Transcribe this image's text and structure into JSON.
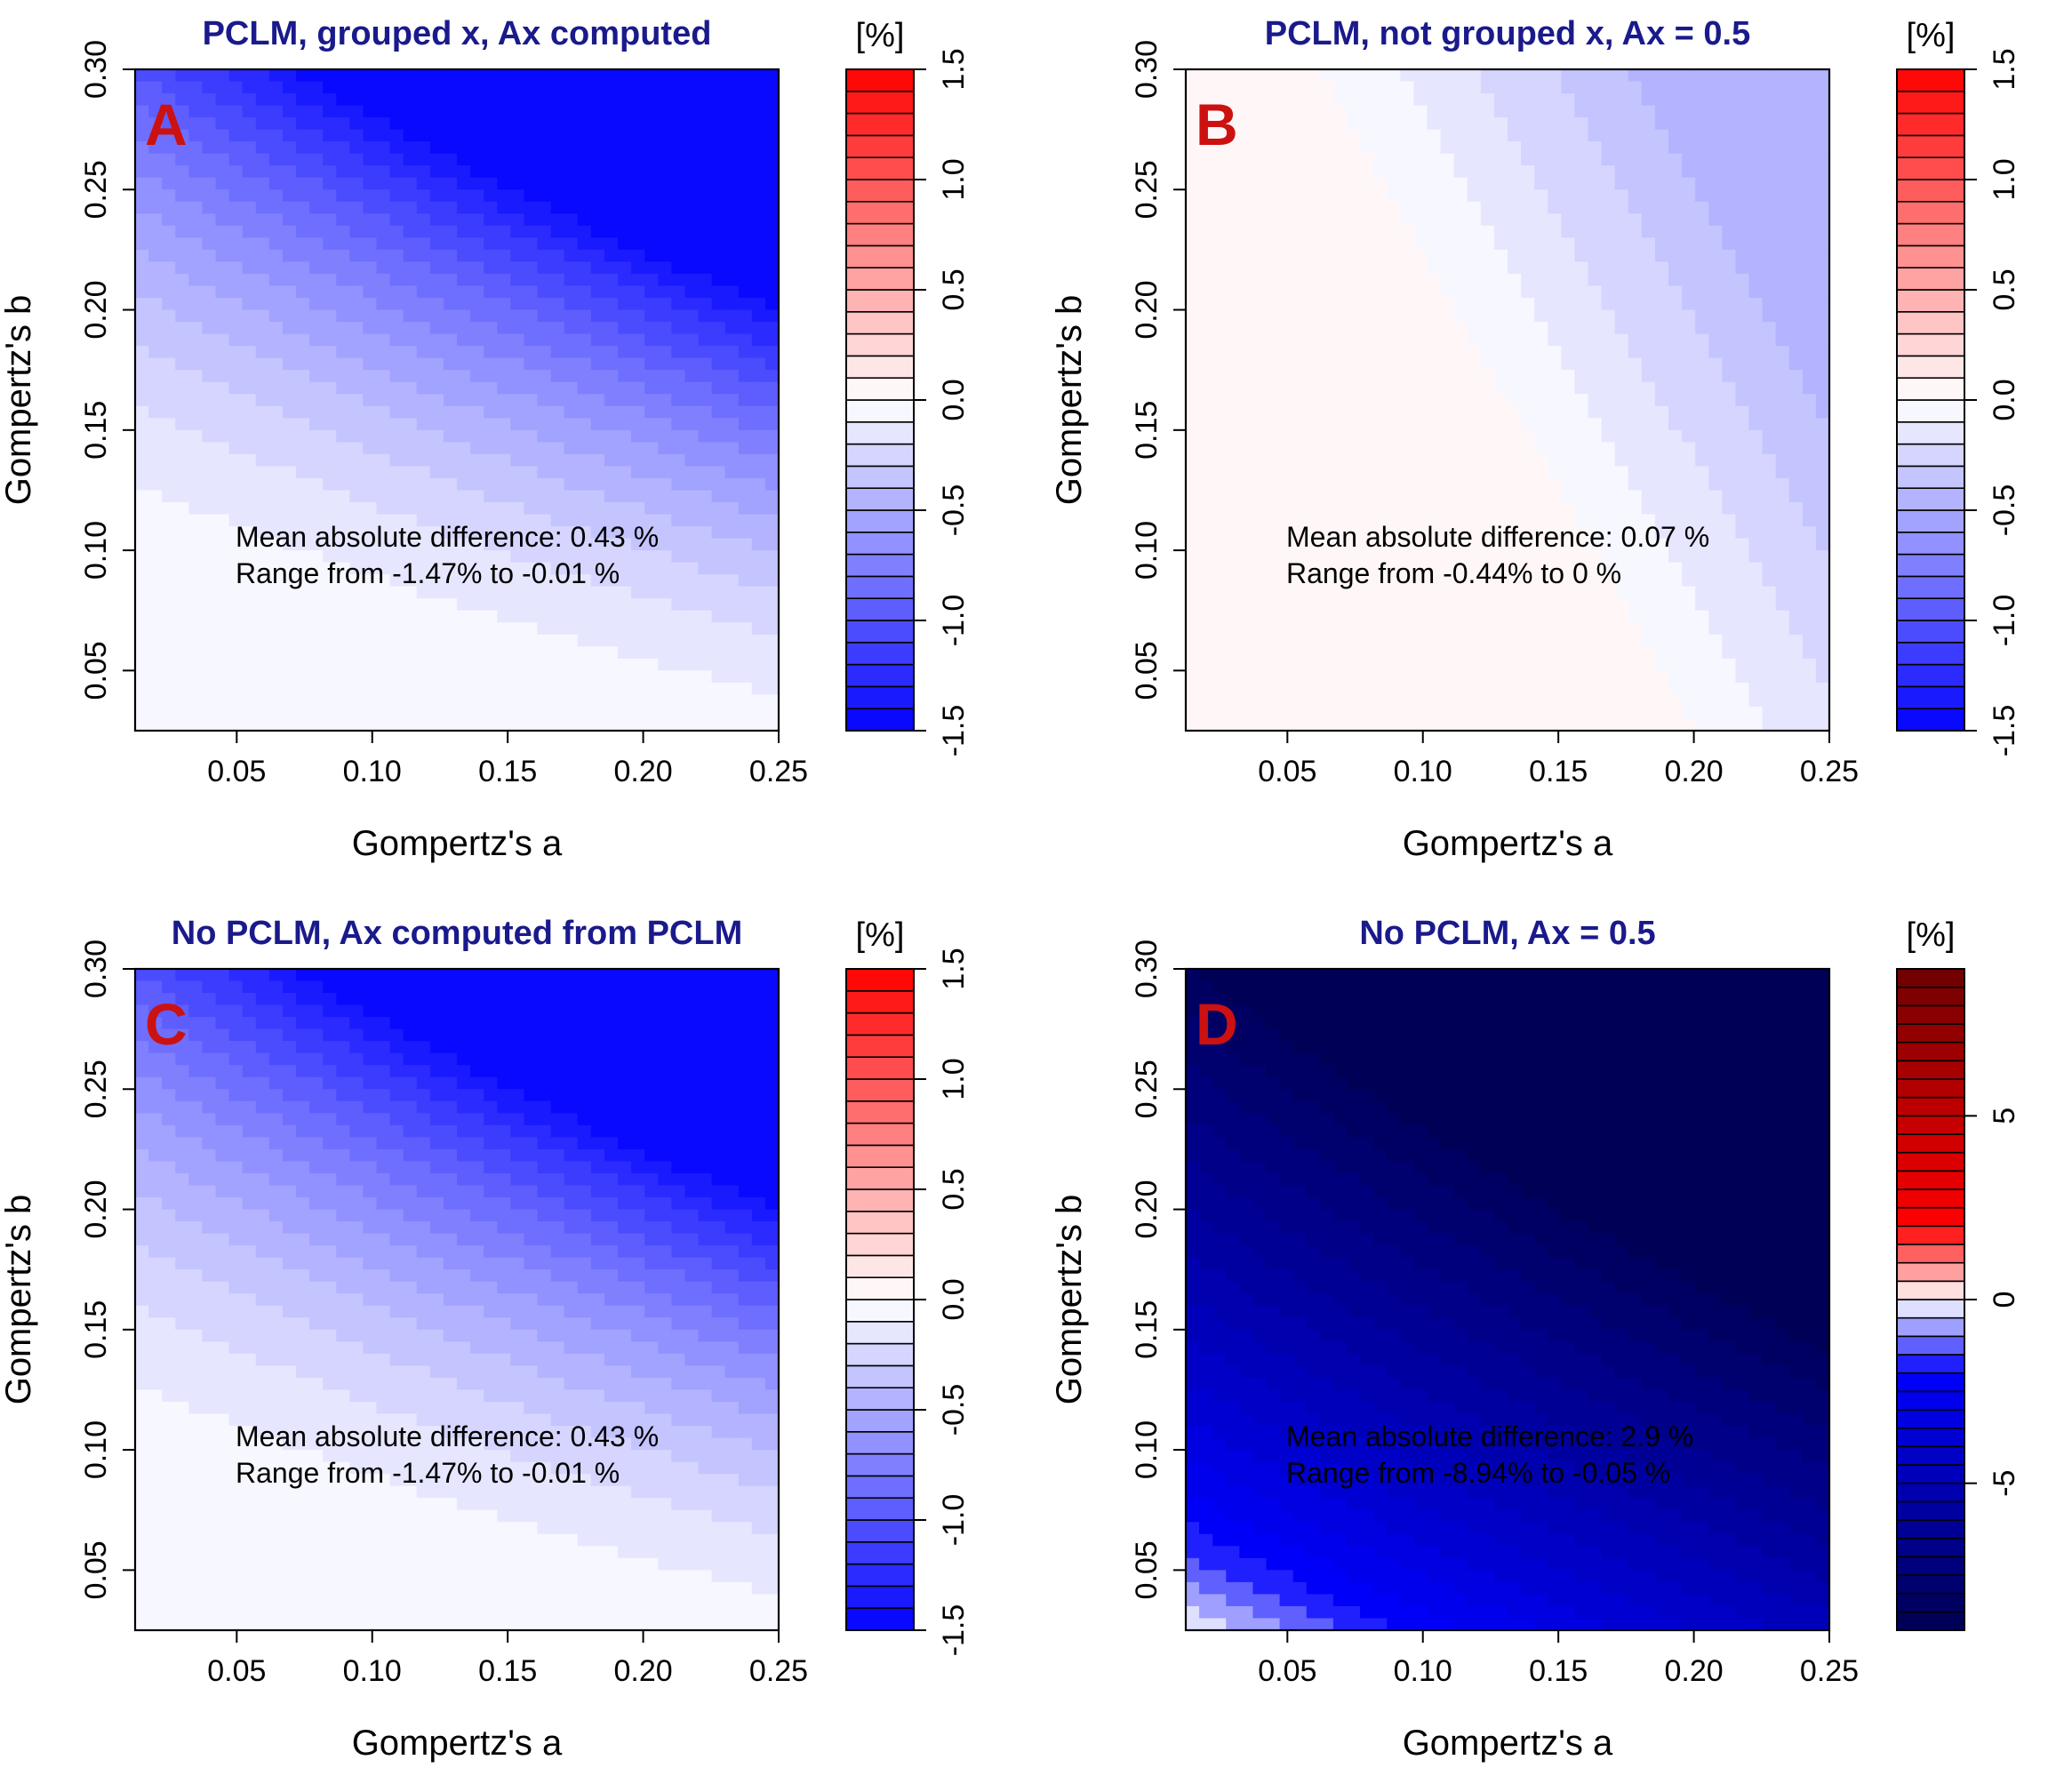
{
  "chart_data": [
    {
      "type": "heatmap",
      "panel_letter": "A",
      "title": "PCLM, grouped x, Ax computed",
      "xlabel": "Gompertz's a",
      "ylabel": "Gompertz's b",
      "xlim": [
        0.0125,
        0.25
      ],
      "ylim": [
        0.025,
        0.3
      ],
      "xticks": [
        "0.05",
        "0.10",
        "0.15",
        "0.20",
        "0.25"
      ],
      "yticks": [
        "0.05",
        "0.10",
        "0.15",
        "0.20",
        "0.25",
        "0.30"
      ],
      "annotation": [
        "Mean absolute difference: 0.43 %",
        "Range from -1.47% to -0.01 %"
      ],
      "value_range": [
        -1.47,
        -0.01
      ],
      "colorbar": {
        "unit": "[%]",
        "lim": [
          -1.5,
          1.5
        ],
        "ticks": [
          "-1.5",
          "-1.0",
          "-0.5",
          "0.0",
          "0.5",
          "1.0",
          "1.5"
        ],
        "tick_values": [
          -1.5,
          -1.0,
          -0.5,
          0.0,
          0.5,
          1.0,
          1.5
        ],
        "levels": 30
      }
    },
    {
      "type": "heatmap",
      "panel_letter": "B",
      "title": "PCLM, not grouped x, Ax = 0.5",
      "xlabel": "Gompertz's a",
      "ylabel": "Gompertz's b",
      "xlim": [
        0.0125,
        0.25
      ],
      "ylim": [
        0.025,
        0.3
      ],
      "xticks": [
        "0.05",
        "0.10",
        "0.15",
        "0.20",
        "0.25"
      ],
      "yticks": [
        "0.05",
        "0.10",
        "0.15",
        "0.20",
        "0.25",
        "0.30"
      ],
      "annotation": [
        "Mean absolute difference: 0.07 %",
        "Range from -0.44% to 0 %"
      ],
      "value_range": [
        -0.44,
        0
      ],
      "colorbar": {
        "unit": "[%]",
        "lim": [
          -1.5,
          1.5
        ],
        "ticks": [
          "-1.5",
          "-1.0",
          "-0.5",
          "0.0",
          "0.5",
          "1.0",
          "1.5"
        ],
        "tick_values": [
          -1.5,
          -1.0,
          -0.5,
          0.0,
          0.5,
          1.0,
          1.5
        ],
        "levels": 30
      }
    },
    {
      "type": "heatmap",
      "panel_letter": "C",
      "title": "No PCLM, Ax computed from PCLM",
      "xlabel": "Gompertz's a",
      "ylabel": "Gompertz's b",
      "xlim": [
        0.0125,
        0.25
      ],
      "ylim": [
        0.025,
        0.3
      ],
      "xticks": [
        "0.05",
        "0.10",
        "0.15",
        "0.20",
        "0.25"
      ],
      "yticks": [
        "0.05",
        "0.10",
        "0.15",
        "0.20",
        "0.25",
        "0.30"
      ],
      "annotation": [
        "Mean absolute difference: 0.43 %",
        "Range from -1.47% to -0.01 %"
      ],
      "value_range": [
        -1.47,
        -0.01
      ],
      "colorbar": {
        "unit": "[%]",
        "lim": [
          -1.5,
          1.5
        ],
        "ticks": [
          "-1.5",
          "-1.0",
          "-0.5",
          "0.0",
          "0.5",
          "1.0",
          "1.5"
        ],
        "tick_values": [
          -1.5,
          -1.0,
          -0.5,
          0.0,
          0.5,
          1.0,
          1.5
        ],
        "levels": 30
      }
    },
    {
      "type": "heatmap",
      "panel_letter": "D",
      "title": "No PCLM, Ax = 0.5",
      "xlabel": "Gompertz's a",
      "ylabel": "Gompertz's b",
      "xlim": [
        0.0125,
        0.25
      ],
      "ylim": [
        0.025,
        0.3
      ],
      "xticks": [
        "0.05",
        "0.10",
        "0.15",
        "0.20",
        "0.25"
      ],
      "yticks": [
        "0.05",
        "0.10",
        "0.15",
        "0.20",
        "0.25",
        "0.30"
      ],
      "annotation": [
        "Mean absolute difference: 2.9 %",
        "Range from -8.94% to -0.05 %"
      ],
      "value_range": [
        -8.94,
        -0.05
      ],
      "colorbar": {
        "unit": "[%]",
        "lim": [
          -9,
          9
        ],
        "ticks": [
          "-5",
          "0",
          "5"
        ],
        "tick_values": [
          -5,
          0,
          5
        ],
        "levels": 36
      }
    }
  ]
}
